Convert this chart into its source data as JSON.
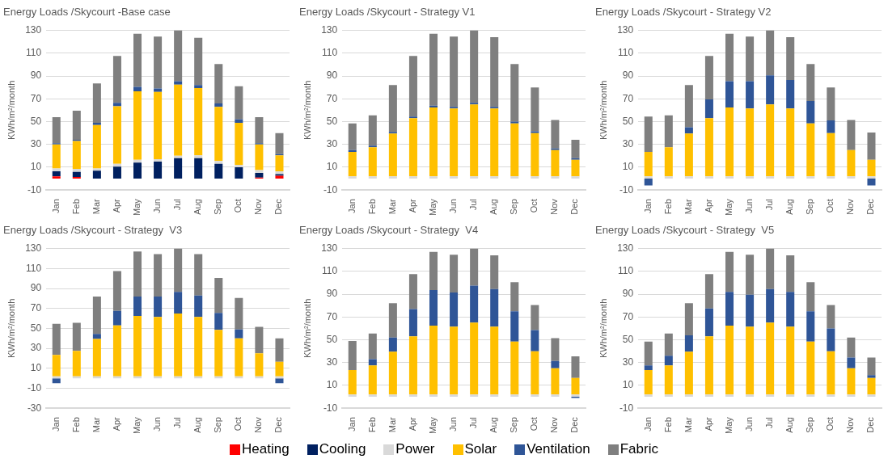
{
  "chart_data": [
    {
      "type": "bar",
      "stacked": true,
      "title": "Energy Loads /Skycourt -Base case",
      "ylabel": "KWh/m²/month",
      "categories": [
        "Jan",
        "Feb",
        "Mar",
        "Apr",
        "May",
        "Jun",
        "Jul",
        "Aug",
        "Sep",
        "Oct",
        "Nov",
        "Dec"
      ],
      "ylim": [
        -10,
        130
      ],
      "yticks": [
        -10,
        10,
        30,
        50,
        70,
        90,
        110,
        130
      ],
      "grid": "y",
      "legend": "bottom",
      "series": [
        {
          "name": "Heating",
          "color": "#ff0000",
          "values": [
            2,
            1.5,
            0,
            0,
            0,
            0,
            0,
            0,
            0,
            0,
            1,
            2.5
          ]
        },
        {
          "name": "Cooling",
          "color": "#002060",
          "values": [
            4.5,
            4.5,
            7,
            10.5,
            14,
            15,
            18,
            18,
            13,
            10,
            4,
            1.5
          ]
        },
        {
          "name": "Power",
          "color": "#d9d9d9",
          "values": [
            2.5,
            2.5,
            2,
            2.5,
            2.5,
            2,
            2,
            2.5,
            2.5,
            2,
            2.5,
            2.5
          ]
        },
        {
          "name": "Solar",
          "color": "#ffc000",
          "values": [
            21,
            24.5,
            38,
            50.5,
            60,
            59,
            62.5,
            59,
            47.5,
            37,
            22.5,
            14
          ]
        },
        {
          "name": "Ventilation",
          "color": "#2f5597",
          "values": [
            1,
            1,
            2,
            3,
            4,
            3,
            3,
            2.5,
            3,
            3,
            1,
            1
          ]
        },
        {
          "name": "Fabric",
          "color": "#7f7f7f",
          "values": [
            23,
            25.5,
            34.5,
            41,
            46.5,
            45.5,
            44.5,
            41.5,
            34.5,
            29,
            23,
            18.5
          ]
        }
      ]
    },
    {
      "type": "bar",
      "stacked": true,
      "title": "Energy Loads /Skycourt - Strategy V1",
      "ylabel": "KWh/m²/month",
      "categories": [
        "Jan",
        "Feb",
        "Mar",
        "Apr",
        "May",
        "Jun",
        "Jul",
        "Aug",
        "Sep",
        "Oct",
        "Nov",
        "Dec"
      ],
      "ylim": [
        -10,
        130
      ],
      "yticks": [
        -10,
        10,
        30,
        50,
        70,
        90,
        110,
        130
      ],
      "grid": "y",
      "legend": "bottom",
      "series": [
        {
          "name": "Power",
          "color": "#d9d9d9",
          "values": [
            2,
            2,
            2,
            2,
            2,
            2,
            2,
            2,
            2,
            2,
            2,
            2
          ]
        },
        {
          "name": "Solar",
          "color": "#ffc000",
          "values": [
            21.5,
            25.5,
            37.5,
            51,
            60.5,
            59.5,
            63,
            59.5,
            46.5,
            38,
            23,
            14.5
          ]
        },
        {
          "name": "Ventilation",
          "color": "#2f5597",
          "values": [
            1.5,
            1.5,
            1.5,
            1.5,
            1.5,
            1.5,
            1.5,
            1.5,
            1.5,
            1.5,
            1.5,
            1.5
          ]
        },
        {
          "name": "Fabric",
          "color": "#7f7f7f",
          "values": [
            23.5,
            26.5,
            41,
            53,
            63,
            61.5,
            63.5,
            61,
            50.5,
            38.5,
            25,
            16
          ]
        }
      ]
    },
    {
      "type": "bar",
      "stacked": true,
      "title": "Energy Loads /Skycourt - Strategy V2",
      "ylabel": "KWh/m²/month",
      "categories": [
        "Jan",
        "Feb",
        "Mar",
        "Apr",
        "May",
        "Jun",
        "Jul",
        "Aug",
        "Sep",
        "Oct",
        "Nov",
        "Dec"
      ],
      "ylim": [
        -10,
        130
      ],
      "yticks": [
        -10,
        10,
        30,
        50,
        70,
        90,
        110,
        130
      ],
      "grid": "y",
      "legend": "bottom",
      "series": [
        {
          "name": "Power",
          "color": "#d9d9d9",
          "values": [
            2,
            2,
            2,
            2,
            2,
            2,
            2,
            2,
            2,
            2,
            2,
            2
          ]
        },
        {
          "name": "Solar",
          "color": "#ffc000",
          "values": [
            21.5,
            25.5,
            37.5,
            51,
            60.5,
            59.5,
            63,
            59.5,
            46.5,
            38,
            23,
            14.5
          ]
        },
        {
          "name": "Ventilation",
          "color": "#2f5597",
          "values": [
            -6,
            0,
            5.5,
            16.5,
            23,
            24,
            25.5,
            25,
            19.5,
            11,
            0,
            -6
          ]
        },
        {
          "name": "Fabric",
          "color": "#7f7f7f",
          "values": [
            31,
            28,
            37,
            38,
            41.5,
            39,
            39.5,
            37.5,
            32.5,
            29,
            26.5,
            24
          ]
        }
      ]
    },
    {
      "type": "bar",
      "stacked": true,
      "title": "Energy Loads /Skycourt - Strategy  V3",
      "ylabel": "KWh/m²/month",
      "categories": [
        "Jan",
        "Feb",
        "Mar",
        "Apr",
        "May",
        "Jun",
        "Jul",
        "Aug",
        "Sep",
        "Oct",
        "Nov",
        "Dec"
      ],
      "ylim": [
        -30,
        130
      ],
      "yticks": [
        -30,
        -10,
        10,
        30,
        50,
        70,
        90,
        110,
        130
      ],
      "grid": "y",
      "legend": "bottom",
      "series": [
        {
          "name": "Power",
          "color": "#d9d9d9",
          "values": [
            2,
            2,
            2,
            2,
            2,
            2,
            2,
            2,
            2,
            2,
            2,
            2
          ]
        },
        {
          "name": "Solar",
          "color": "#ffc000",
          "values": [
            21.5,
            25.5,
            37.5,
            51,
            60.5,
            59.5,
            63,
            59.5,
            46.5,
            38,
            23,
            14.5
          ]
        },
        {
          "name": "Ventilation",
          "color": "#2f5597",
          "values": [
            -5,
            0,
            5,
            14.5,
            19.5,
            20.5,
            21.5,
            21.5,
            17,
            9,
            0,
            -5
          ]
        },
        {
          "name": "Fabric",
          "color": "#7f7f7f",
          "values": [
            31,
            28,
            37.5,
            40,
            45,
            42.5,
            43.5,
            41.5,
            35,
            31.5,
            26.5,
            23.5
          ]
        }
      ]
    },
    {
      "type": "bar",
      "stacked": true,
      "title": "Energy Loads /Skycourt - Strategy  V4",
      "ylabel": "KWh/m²/month",
      "categories": [
        "Jan",
        "Feb",
        "Mar",
        "Apr",
        "May",
        "Jun",
        "Jul",
        "Aug",
        "Sep",
        "Oct",
        "Nov",
        "Dec"
      ],
      "ylim": [
        -10,
        130
      ],
      "yticks": [
        -10,
        10,
        30,
        50,
        70,
        90,
        110,
        130
      ],
      "grid": "y",
      "legend": "bottom",
      "series": [
        {
          "name": "Power",
          "color": "#d9d9d9",
          "values": [
            2,
            2,
            2,
            2,
            2,
            2,
            2,
            2,
            2,
            2,
            2,
            2
          ]
        },
        {
          "name": "Solar",
          "color": "#ffc000",
          "values": [
            21.5,
            25.5,
            37.5,
            51,
            60.5,
            59.5,
            63,
            59.5,
            46.5,
            38,
            23,
            14.5
          ]
        },
        {
          "name": "Ventilation",
          "color": "#2f5597",
          "values": [
            0,
            5.5,
            12.5,
            24,
            31,
            30,
            32.5,
            33,
            26.5,
            18.5,
            6.5,
            -1
          ]
        },
        {
          "name": "Fabric",
          "color": "#7f7f7f",
          "values": [
            25.5,
            22.5,
            30,
            30.5,
            33.5,
            33,
            32.5,
            29.5,
            25.5,
            22,
            20,
            19
          ]
        }
      ]
    },
    {
      "type": "bar",
      "stacked": true,
      "title": "Energy Loads /Skycourt - Strategy  V5",
      "ylabel": "KWh/m²/month",
      "categories": [
        "Jan",
        "Feb",
        "Mar",
        "Apr",
        "May",
        "Jun",
        "Jul",
        "Aug",
        "Sep",
        "Oct",
        "Nov",
        "Dec"
      ],
      "ylim": [
        -10,
        130
      ],
      "yticks": [
        -10,
        10,
        30,
        50,
        70,
        90,
        110,
        130
      ],
      "grid": "y",
      "legend": "bottom",
      "series": [
        {
          "name": "Power",
          "color": "#d9d9d9",
          "values": [
            2,
            2,
            2,
            2,
            2,
            2,
            2,
            2,
            2,
            2,
            2,
            2
          ]
        },
        {
          "name": "Solar",
          "color": "#ffc000",
          "values": [
            21.5,
            25.5,
            37.5,
            51,
            60.5,
            59.5,
            63,
            59.5,
            46.5,
            38,
            23,
            14.5
          ]
        },
        {
          "name": "Ventilation",
          "color": "#2f5597",
          "values": [
            4,
            8.5,
            14.5,
            24.5,
            29.5,
            28,
            29.5,
            30.5,
            26.5,
            20,
            9.5,
            2.5
          ]
        },
        {
          "name": "Fabric",
          "color": "#7f7f7f",
          "values": [
            21,
            19.5,
            28,
            30,
            35,
            35,
            35.5,
            32,
            25.5,
            20.5,
            17.5,
            15.5
          ]
        }
      ]
    }
  ]
}
